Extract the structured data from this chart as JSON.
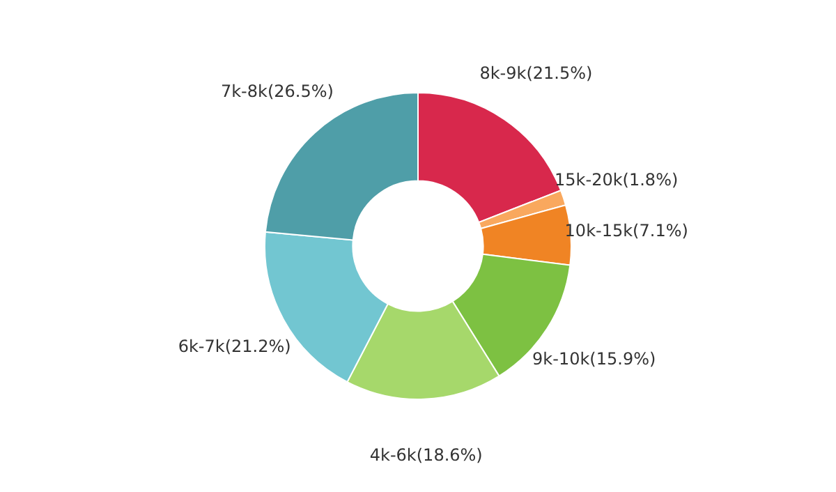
{
  "chart_data": {
    "type": "donut",
    "categories": [
      "8k-9k",
      "15k-20k",
      "10k-15k",
      "9k-10k",
      "4k-6k",
      "6k-7k",
      "7k-8k"
    ],
    "values": [
      21.5,
      1.8,
      7.1,
      15.9,
      18.6,
      21.2,
      26.5
    ],
    "value_labels": [
      "(21.5%)",
      "(1.8%)",
      "(7.1%)",
      "(15.9%)",
      "(18.6%)",
      "(21.2%)",
      "(26.5%)"
    ],
    "colors": [
      "#d8284c",
      "#f9a85e",
      "#f08424",
      "#7dc142",
      "#a6d86b",
      "#72c6d1",
      "#4f9ea8"
    ],
    "legend": false
  }
}
